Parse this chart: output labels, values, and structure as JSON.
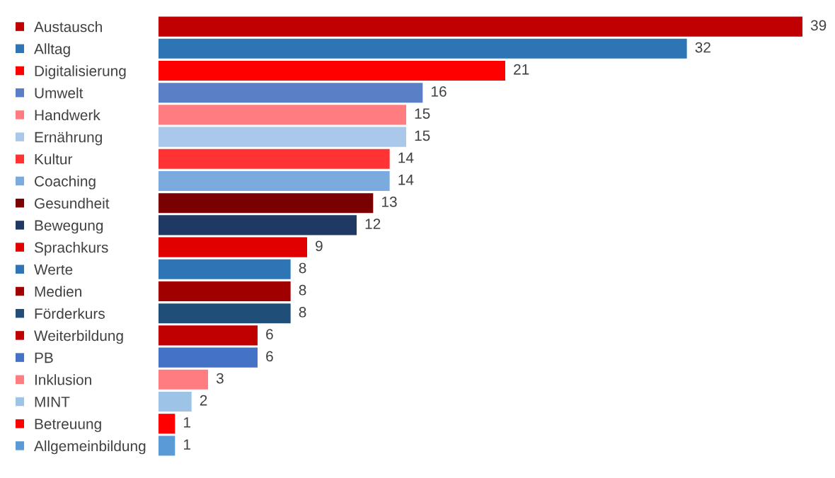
{
  "chart_data": {
    "type": "bar",
    "orientation": "horizontal",
    "data_labels": true,
    "categories": [
      "Austausch",
      "Alltag",
      "Digitalisierung",
      "Umwelt",
      "Handwerk",
      "Ernährung",
      "Kultur",
      "Coaching",
      "Gesundheit",
      "Bewegung",
      "Sprachkurs",
      "Werte",
      "Medien",
      "Förderkurs",
      "Weiterbildung",
      "PB",
      "Inklusion",
      "MINT",
      "Betreuung",
      "Allgemeinbildung"
    ],
    "values": [
      39,
      32,
      21,
      16,
      15,
      15,
      14,
      14,
      13,
      12,
      9,
      8,
      8,
      8,
      6,
      6,
      3,
      2,
      1,
      1
    ],
    "colors": [
      "#c00000",
      "#2e75b6",
      "#ff0000",
      "#5b7fc7",
      "#ff7c80",
      "#a9c8ea",
      "#ff3333",
      "#7aaade",
      "#7b0000",
      "#203864",
      "#e00000",
      "#2e75b6",
      "#a00000",
      "#1f4e79",
      "#c00000",
      "#4472c4",
      "#ff7c80",
      "#9dc3e6",
      "#ff0000",
      "#5b9bd5"
    ]
  }
}
